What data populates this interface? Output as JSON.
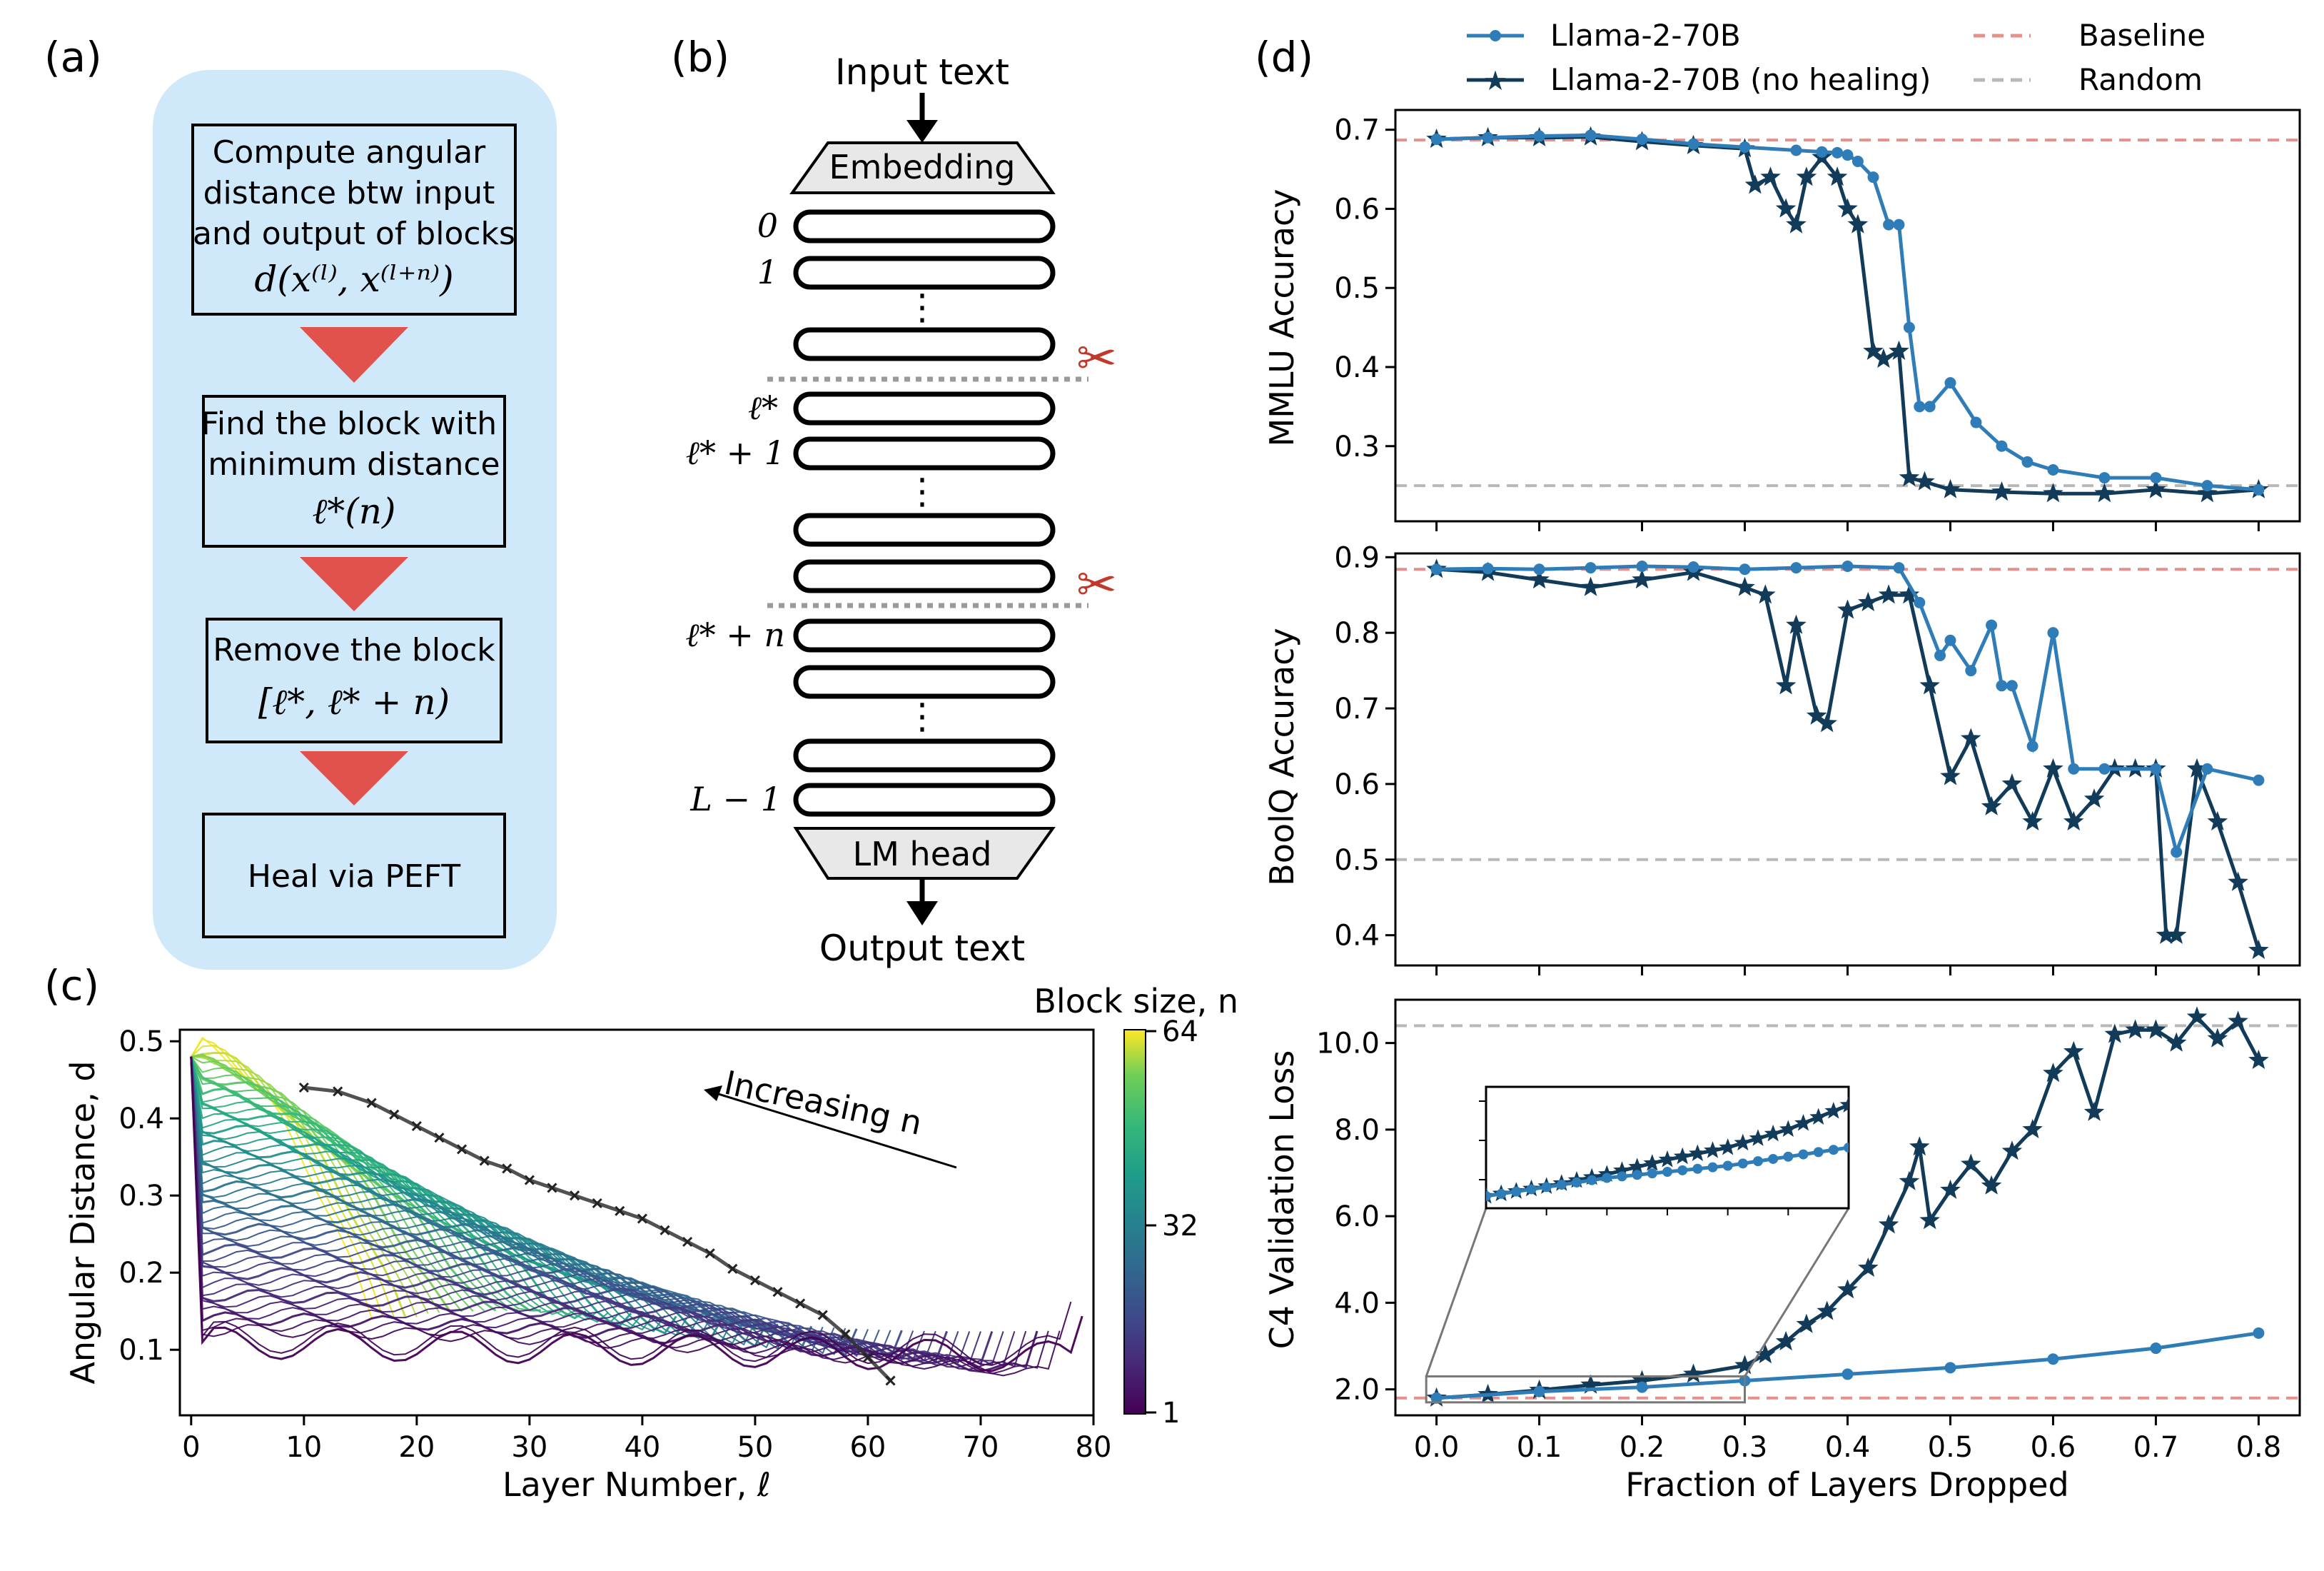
{
  "panel_labels": {
    "a": "(a)",
    "b": "(b)",
    "c": "(c)",
    "d": "(d)"
  },
  "panel_a": {
    "steps": [
      {
        "lines": [
          "Compute angular",
          "distance btw input",
          "and output of blocks"
        ],
        "math": "d(x⁽ˡ⁾, x⁽ˡ⁺ⁿ⁾)"
      },
      {
        "lines": [
          "Find the block with",
          "minimum distance"
        ],
        "math": "ℓ*(n)"
      },
      {
        "lines": [
          "Remove the block"
        ],
        "math": "[ℓ*, ℓ* + n)"
      },
      {
        "lines": [
          "Heal via PEFT"
        ],
        "math": ""
      }
    ],
    "colors": {
      "background": "#cfe9fb",
      "arrow": "#e0524b"
    }
  },
  "panel_b": {
    "input_text": "Input text",
    "embedding": "Embedding",
    "lm_head": "LM head",
    "output_text": "Output text",
    "layer_labels": {
      "l0": "0",
      "l1": "1",
      "lstar": "ℓ*",
      "lstar1": "ℓ* + 1",
      "lstarn": "ℓ* + n",
      "lL": "L − 1"
    },
    "dots": "⋮",
    "scissors_icon": "✂",
    "colors": {
      "cut_line": "#9a9a9a",
      "scissors": "#c0392b",
      "head": "#e8e8e8"
    }
  },
  "chart_data": [
    {
      "id": "c",
      "type": "line",
      "title": "",
      "xlabel": "Layer Number, ℓ",
      "ylabel": "Angular Distance, d",
      "xlim": [
        -1,
        80
      ],
      "ylim": [
        0.015,
        0.515
      ],
      "xticks": [
        0,
        10,
        20,
        30,
        40,
        50,
        60,
        70,
        80
      ],
      "yticks": [
        0.1,
        0.2,
        0.3,
        0.4,
        0.5
      ],
      "num_layers": 80,
      "block_sizes": [
        1,
        64
      ],
      "colorbar": {
        "label": "Block size, n",
        "ticks": [
          "1",
          "32",
          "64"
        ],
        "colormap": "viridis"
      },
      "annotation": "Increasing n",
      "min_curve": {
        "x": [
          10,
          13,
          16,
          18,
          20,
          22,
          24,
          26,
          28,
          30,
          32,
          34,
          36,
          38,
          40,
          42,
          44,
          46,
          48,
          50,
          52,
          54,
          56,
          58,
          60,
          62
        ],
        "y": [
          0.44,
          0.435,
          0.42,
          0.405,
          0.39,
          0.375,
          0.36,
          0.345,
          0.335,
          0.32,
          0.31,
          0.3,
          0.29,
          0.28,
          0.27,
          0.255,
          0.24,
          0.225,
          0.205,
          0.19,
          0.175,
          0.16,
          0.145,
          0.12,
          0.09,
          0.06
        ]
      }
    },
    {
      "id": "d_mmlu",
      "type": "line",
      "ylabel": "MMLU Accuracy",
      "xlim": [
        -0.04,
        0.84
      ],
      "ylim": [
        0.205,
        0.725
      ],
      "yticks": [
        0.3,
        0.4,
        0.5,
        0.6,
        0.7
      ],
      "baseline": 0.687,
      "random": 0.25,
      "series": [
        {
          "name": "Llama-2-70B",
          "marker": "dot",
          "x": [
            0.0,
            0.05,
            0.1,
            0.15,
            0.2,
            0.25,
            0.3,
            0.35,
            0.375,
            0.39,
            0.4,
            0.41,
            0.425,
            0.44,
            0.45,
            0.46,
            0.47,
            0.48,
            0.5,
            0.525,
            0.55,
            0.575,
            0.6,
            0.65,
            0.7,
            0.75,
            0.8
          ],
          "y": [
            0.688,
            0.69,
            0.692,
            0.693,
            0.688,
            0.682,
            0.678,
            0.674,
            0.672,
            0.671,
            0.668,
            0.66,
            0.64,
            0.58,
            0.58,
            0.45,
            0.35,
            0.35,
            0.38,
            0.33,
            0.3,
            0.28,
            0.27,
            0.26,
            0.26,
            0.25,
            0.245
          ]
        },
        {
          "name": "Llama-2-70B (no healing)",
          "marker": "star",
          "x": [
            0.0,
            0.05,
            0.1,
            0.15,
            0.2,
            0.25,
            0.3,
            0.31,
            0.325,
            0.34,
            0.35,
            0.36,
            0.375,
            0.39,
            0.4,
            0.41,
            0.425,
            0.435,
            0.45,
            0.46,
            0.475,
            0.5,
            0.55,
            0.6,
            0.65,
            0.7,
            0.75,
            0.8
          ],
          "y": [
            0.688,
            0.69,
            0.69,
            0.691,
            0.685,
            0.68,
            0.676,
            0.63,
            0.64,
            0.6,
            0.58,
            0.64,
            0.665,
            0.64,
            0.6,
            0.58,
            0.42,
            0.41,
            0.42,
            0.26,
            0.255,
            0.245,
            0.242,
            0.24,
            0.24,
            0.245,
            0.24,
            0.245
          ]
        }
      ]
    },
    {
      "id": "d_boolq",
      "type": "line",
      "ylabel": "BoolQ Accuracy",
      "xlim": [
        -0.04,
        0.84
      ],
      "ylim": [
        0.36,
        0.905
      ],
      "yticks": [
        0.4,
        0.5,
        0.6,
        0.7,
        0.8,
        0.9
      ],
      "baseline": 0.884,
      "random": 0.5,
      "series": [
        {
          "name": "Llama-2-70B",
          "marker": "dot",
          "x": [
            0.0,
            0.05,
            0.1,
            0.15,
            0.2,
            0.25,
            0.3,
            0.35,
            0.4,
            0.45,
            0.47,
            0.49,
            0.5,
            0.52,
            0.54,
            0.55,
            0.56,
            0.58,
            0.6,
            0.62,
            0.65,
            0.7,
            0.72,
            0.75,
            0.8
          ],
          "y": [
            0.884,
            0.885,
            0.884,
            0.886,
            0.888,
            0.887,
            0.884,
            0.886,
            0.888,
            0.886,
            0.84,
            0.77,
            0.79,
            0.75,
            0.81,
            0.73,
            0.73,
            0.65,
            0.8,
            0.62,
            0.62,
            0.62,
            0.51,
            0.62,
            0.605
          ]
        },
        {
          "name": "Llama-2-70B (no healing)",
          "marker": "star",
          "x": [
            0.0,
            0.05,
            0.1,
            0.15,
            0.2,
            0.25,
            0.3,
            0.32,
            0.34,
            0.35,
            0.37,
            0.38,
            0.4,
            0.42,
            0.44,
            0.46,
            0.48,
            0.5,
            0.52,
            0.54,
            0.56,
            0.58,
            0.6,
            0.62,
            0.64,
            0.66,
            0.68,
            0.7,
            0.71,
            0.72,
            0.74,
            0.76,
            0.78,
            0.8
          ],
          "y": [
            0.884,
            0.88,
            0.87,
            0.86,
            0.87,
            0.88,
            0.86,
            0.85,
            0.73,
            0.81,
            0.69,
            0.68,
            0.83,
            0.84,
            0.85,
            0.85,
            0.73,
            0.61,
            0.66,
            0.57,
            0.6,
            0.55,
            0.62,
            0.55,
            0.58,
            0.62,
            0.62,
            0.62,
            0.4,
            0.4,
            0.62,
            0.55,
            0.47,
            0.38
          ]
        }
      ]
    },
    {
      "id": "d_c4",
      "type": "line",
      "ylabel": "C4 Validation Loss",
      "xlabel": "Fraction of Layers Dropped",
      "xlim": [
        -0.04,
        0.84
      ],
      "xticks": [
        0.0,
        0.1,
        0.2,
        0.3,
        0.4,
        0.5,
        0.6,
        0.7,
        0.8
      ],
      "ylim": [
        1.4,
        11.0
      ],
      "yticks": [
        2.0,
        4.0,
        6.0,
        8.0,
        10.0
      ],
      "baseline": 1.8,
      "random": 10.4,
      "series": [
        {
          "name": "Llama-2-70B",
          "marker": "dot",
          "x": [
            0.0,
            0.1,
            0.2,
            0.3,
            0.4,
            0.5,
            0.6,
            0.7,
            0.8
          ],
          "y": [
            1.8,
            1.95,
            2.05,
            2.2,
            2.35,
            2.5,
            2.7,
            2.95,
            3.3
          ]
        },
        {
          "name": "Llama-2-70B (no healing)",
          "marker": "star",
          "x": [
            0.0,
            0.05,
            0.1,
            0.15,
            0.2,
            0.25,
            0.3,
            0.32,
            0.34,
            0.36,
            0.38,
            0.4,
            0.42,
            0.44,
            0.46,
            0.47,
            0.48,
            0.5,
            0.52,
            0.54,
            0.56,
            0.58,
            0.6,
            0.62,
            0.64,
            0.66,
            0.68,
            0.7,
            0.72,
            0.74,
            0.76,
            0.78,
            0.8
          ],
          "y": [
            1.8,
            1.88,
            1.98,
            2.1,
            2.2,
            2.35,
            2.55,
            2.8,
            3.1,
            3.5,
            3.8,
            4.3,
            4.8,
            5.8,
            6.8,
            7.6,
            5.9,
            6.6,
            7.2,
            6.7,
            7.5,
            8.0,
            9.3,
            9.8,
            8.4,
            10.2,
            10.3,
            10.3,
            10.0,
            10.6,
            10.1,
            10.5,
            9.6
          ]
        }
      ]
    }
  ],
  "legend": {
    "s1": "Llama-2-70B",
    "s2": "Llama-2-70B (no healing)",
    "baseline": "Baseline",
    "random": "Random"
  },
  "colors": {
    "s1": "#2f7db8",
    "s2": "#123b5a",
    "baseline": "#e6908c",
    "random": "#b8b8b8"
  }
}
